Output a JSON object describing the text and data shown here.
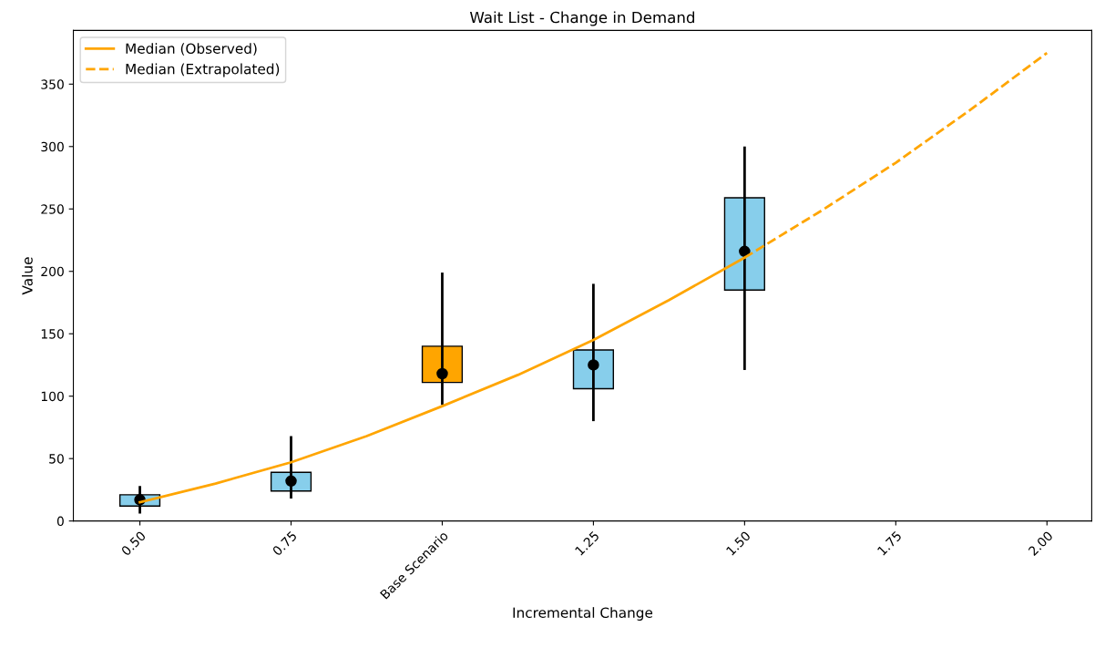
{
  "chart_data": {
    "type": "box",
    "title": "Wait List - Change in Demand",
    "xlabel": "Incremental Change",
    "ylabel": "Value",
    "xlim": [
      0.39,
      2.074
    ],
    "ylim": [
      0,
      393
    ],
    "xticks": [
      {
        "value": 0.5,
        "label": "0.50"
      },
      {
        "value": 0.75,
        "label": "0.75"
      },
      {
        "value": 1.0,
        "label": "Base Scenario"
      },
      {
        "value": 1.25,
        "label": "1.25"
      },
      {
        "value": 1.5,
        "label": "1.50"
      },
      {
        "value": 1.75,
        "label": "1.75"
      },
      {
        "value": 2.0,
        "label": "2.00"
      }
    ],
    "yticks": [
      0,
      50,
      100,
      150,
      200,
      250,
      300,
      350
    ],
    "grid": false,
    "legend": "top left",
    "series": [
      {
        "x": [
          0.5,
          0.75,
          1.0,
          1.25,
          1.5
        ],
        "colors": [
          "#87ceeb",
          "#87ceeb",
          "#ffa500",
          "#87ceeb",
          "#87ceeb"
        ],
        "marker": "circle",
        "boxes": [
          {
            "low": 7,
            "q1": 12,
            "median": 17,
            "q3": 21,
            "high": 27
          },
          {
            "low": 19,
            "q1": 24,
            "median": 32,
            "q3": 39,
            "high": 67
          },
          {
            "low": 94,
            "q1": 111,
            "median": 118,
            "q3": 140,
            "high": 198
          },
          {
            "low": 81,
            "q1": 106,
            "median": 125,
            "q3": 137,
            "high": 189
          },
          {
            "low": 122,
            "q1": 185,
            "median": 216,
            "q3": 259,
            "high": 299
          }
        ]
      },
      {
        "type": "line",
        "name": "Median (Observed)",
        "color": "#ffa500",
        "line_style": "solid",
        "x": [
          0.5,
          0.625,
          0.75,
          0.875,
          1.0,
          1.125,
          1.25,
          1.375,
          1.5
        ],
        "values": [
          15,
          30,
          47,
          68,
          92,
          117,
          145,
          177,
          211
        ]
      },
      {
        "type": "line",
        "name": "Median (Extrapolated)",
        "color": "#ffa500",
        "line_style": "dashed",
        "x": [
          1.5,
          1.625,
          1.75,
          1.875,
          2.0
        ],
        "values": [
          211,
          248,
          287,
          330,
          375
        ]
      }
    ]
  }
}
